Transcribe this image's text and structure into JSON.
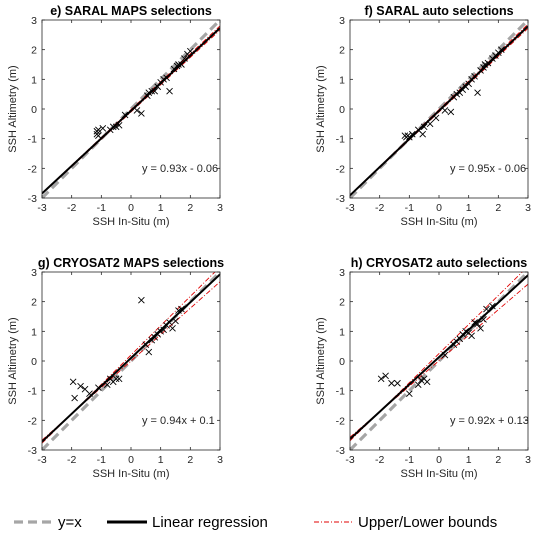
{
  "chart_data": [
    {
      "type": "scatter",
      "title": "e) SARAL MAPS selections",
      "xlabel": "SSH In-Situ (m)",
      "ylabel": "SSH Altimetry (m)",
      "xlim": [
        -3,
        3
      ],
      "ylim": [
        -3,
        3
      ],
      "xticks": [
        "-3",
        "-2",
        "-1",
        "0",
        "1",
        "2",
        "3"
      ],
      "yticks": [
        "-3",
        "-2",
        "-1",
        "0",
        "1",
        "2",
        "3"
      ],
      "equation": "y = 0.93x - 0.06",
      "regression": {
        "slope": 0.93,
        "intercept": -0.06
      },
      "bounds": {
        "upper": [
          0.94,
          -0.02
        ],
        "lower": [
          0.92,
          -0.1
        ]
      },
      "points": [
        [
          -1.15,
          -0.75
        ],
        [
          -1.1,
          -0.9
        ],
        [
          -1.15,
          -0.85
        ],
        [
          -1.1,
          -0.7
        ],
        [
          -0.95,
          -0.65
        ],
        [
          -0.7,
          -0.7
        ],
        [
          -0.6,
          -0.6
        ],
        [
          -0.5,
          -0.6
        ],
        [
          -0.4,
          -0.55
        ],
        [
          -0.2,
          -0.2
        ],
        [
          0.2,
          -0.05
        ],
        [
          0.35,
          -0.15
        ],
        [
          0.55,
          0.45
        ],
        [
          0.6,
          0.55
        ],
        [
          0.7,
          0.6
        ],
        [
          0.8,
          0.6
        ],
        [
          0.9,
          0.75
        ],
        [
          1.0,
          0.9
        ],
        [
          1.1,
          1.0
        ],
        [
          1.2,
          1.05
        ],
        [
          1.3,
          0.6
        ],
        [
          1.45,
          1.35
        ],
        [
          1.55,
          1.45
        ],
        [
          1.6,
          1.5
        ],
        [
          1.7,
          1.5
        ],
        [
          1.8,
          1.7
        ],
        [
          1.9,
          1.85
        ],
        [
          2.0,
          1.95
        ]
      ]
    },
    {
      "type": "scatter",
      "title": "f) SARAL auto selections",
      "xlabel": "SSH In-Situ (m)",
      "ylabel": "SSH Altimetry (m)",
      "xlim": [
        -3,
        3
      ],
      "ylim": [
        -3,
        3
      ],
      "xticks": [
        "-3",
        "-2",
        "-1",
        "0",
        "1",
        "2",
        "3"
      ],
      "yticks": [
        "-3",
        "-2",
        "-1",
        "0",
        "1",
        "2",
        "3"
      ],
      "equation": "y = 0.95x - 0.06",
      "regression": {
        "slope": 0.95,
        "intercept": -0.06
      },
      "bounds": {
        "upper": [
          0.96,
          -0.02
        ],
        "lower": [
          0.94,
          -0.1
        ]
      },
      "points": [
        [
          -1.15,
          -0.9
        ],
        [
          -1.1,
          -0.95
        ],
        [
          -1.05,
          -0.9
        ],
        [
          -1.0,
          -0.95
        ],
        [
          -0.9,
          -0.85
        ],
        [
          -0.7,
          -0.7
        ],
        [
          -0.55,
          -0.85
        ],
        [
          -0.5,
          -0.6
        ],
        [
          -0.3,
          -0.5
        ],
        [
          -0.1,
          -0.3
        ],
        [
          0.2,
          -0.05
        ],
        [
          0.4,
          -0.1
        ],
        [
          0.5,
          0.4
        ],
        [
          0.6,
          0.5
        ],
        [
          0.7,
          0.55
        ],
        [
          0.8,
          0.65
        ],
        [
          0.9,
          0.75
        ],
        [
          1.0,
          0.85
        ],
        [
          1.1,
          1.0
        ],
        [
          1.2,
          1.1
        ],
        [
          1.3,
          0.55
        ],
        [
          1.4,
          1.3
        ],
        [
          1.5,
          1.4
        ],
        [
          1.55,
          1.5
        ],
        [
          1.65,
          1.55
        ],
        [
          1.8,
          1.7
        ],
        [
          1.9,
          1.8
        ],
        [
          2.0,
          1.9
        ],
        [
          2.1,
          2.0
        ]
      ]
    },
    {
      "type": "scatter",
      "title": "g) CRYOSAT2 MAPS selections",
      "xlabel": "SSH In-Situ (m)",
      "ylabel": "SSH Altimetry (m)",
      "xlim": [
        -3,
        3
      ],
      "ylim": [
        -3,
        3
      ],
      "xticks": [
        "-3",
        "-2",
        "-1",
        "0",
        "1",
        "2",
        "3"
      ],
      "yticks": [
        "-3",
        "-2",
        "-1",
        "0",
        "1",
        "2",
        "3"
      ],
      "equation": "y = 0.94x + 0.1",
      "regression": {
        "slope": 0.94,
        "intercept": 0.1
      },
      "bounds": {
        "upper": [
          0.99,
          0.2
        ],
        "lower": [
          0.89,
          0.0
        ]
      },
      "points": [
        [
          -1.95,
          -0.7
        ],
        [
          -1.9,
          -1.25
        ],
        [
          -1.7,
          -0.85
        ],
        [
          -1.55,
          -0.95
        ],
        [
          -1.4,
          -1.1
        ],
        [
          -1.1,
          -0.9
        ],
        [
          -0.8,
          -0.8
        ],
        [
          -0.7,
          -0.6
        ],
        [
          -0.6,
          -0.7
        ],
        [
          -0.5,
          -0.6
        ],
        [
          -0.4,
          -0.6
        ],
        [
          0.35,
          2.05
        ],
        [
          0.5,
          0.55
        ],
        [
          0.6,
          0.3
        ],
        [
          0.7,
          0.7
        ],
        [
          0.8,
          0.8
        ],
        [
          0.9,
          0.9
        ],
        [
          1.0,
          1.0
        ],
        [
          1.1,
          1.05
        ],
        [
          1.2,
          1.2
        ],
        [
          1.3,
          1.3
        ],
        [
          1.4,
          1.1
        ],
        [
          1.5,
          1.35
        ],
        [
          1.6,
          1.7
        ],
        [
          1.7,
          1.75
        ]
      ]
    },
    {
      "type": "scatter",
      "title": "h) CRYOSAT2 auto selections",
      "xlabel": "SSH In-Situ (m)",
      "ylabel": "SSH Altimetry (m)",
      "xlim": [
        -3,
        3
      ],
      "ylim": [
        -3,
        3
      ],
      "xticks": [
        "-3",
        "-2",
        "-1",
        "0",
        "1",
        "2",
        "3"
      ],
      "yticks": [
        "-3",
        "-2",
        "-1",
        "0",
        "1",
        "2",
        "3"
      ],
      "equation": "y = 0.92x + 0.13",
      "regression": {
        "slope": 0.92,
        "intercept": 0.13
      },
      "bounds": {
        "upper": [
          0.98,
          0.25
        ],
        "lower": [
          0.86,
          0.01
        ]
      },
      "points": [
        [
          -1.95,
          -0.6
        ],
        [
          -1.8,
          -0.5
        ],
        [
          -1.6,
          -0.75
        ],
        [
          -1.4,
          -0.75
        ],
        [
          -1.0,
          -1.1
        ],
        [
          -0.7,
          -0.8
        ],
        [
          -0.6,
          -0.65
        ],
        [
          -0.5,
          -0.6
        ],
        [
          -0.4,
          -0.7
        ],
        [
          0.2,
          0.2
        ],
        [
          0.5,
          0.55
        ],
        [
          0.6,
          0.65
        ],
        [
          0.7,
          0.75
        ],
        [
          0.8,
          0.9
        ],
        [
          0.9,
          1.0
        ],
        [
          1.0,
          0.95
        ],
        [
          1.1,
          0.85
        ],
        [
          1.2,
          1.3
        ],
        [
          1.3,
          1.25
        ],
        [
          1.4,
          1.1
        ],
        [
          1.5,
          1.4
        ],
        [
          1.6,
          1.75
        ],
        [
          1.8,
          1.85
        ]
      ]
    }
  ],
  "legend": [
    {
      "label": "y=x",
      "style": "dashed",
      "color": "#a6a6a6"
    },
    {
      "label": "Linear regression",
      "style": "solid",
      "color": "#000000"
    },
    {
      "label": "Upper/Lower bounds",
      "style": "dashdot",
      "color": "#e00000"
    }
  ],
  "colors": {
    "identity": "#a6a6a6",
    "regression": "#000000",
    "bounds": "#e00000",
    "points": "#000000",
    "axes": "#262626"
  }
}
